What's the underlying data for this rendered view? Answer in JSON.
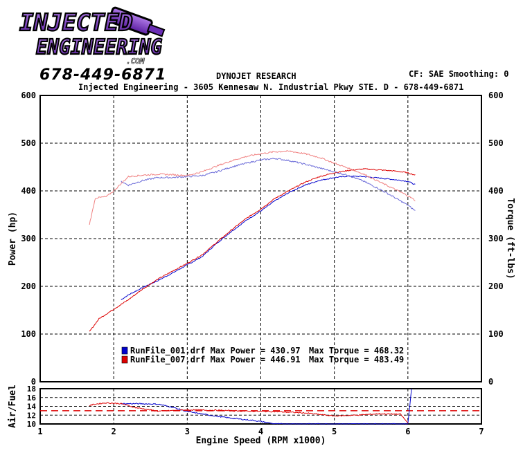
{
  "header": {
    "logo_text_line1": "INJECTED",
    "logo_text_line2": "ENGINEERING",
    "logo_text_line3": ".COM",
    "phone": "678-449-6871",
    "research": "DYNOJET RESEARCH",
    "cf_smoothing": "CF: SAE  Smoothing: 0",
    "address": "Injected Engineering - 3605 Kennesaw N. Industrial Pkwy STE. D - 678-449-6871"
  },
  "colors": {
    "run1": "#0000cc",
    "run2": "#dd0000",
    "run1_torque": "#6a6ad8",
    "run2_torque": "#f08080",
    "logo_purple": "#7a2fc4"
  },
  "chart_data": [
    {
      "type": "line",
      "title": "",
      "xlabel": "",
      "ylabel": "Power (hp)",
      "ylabel_right": "Torque (ft-lbs)",
      "xlim": [
        1,
        7
      ],
      "ylim": [
        0,
        600
      ],
      "xticks": [
        1,
        2,
        3,
        4,
        5,
        6,
        7
      ],
      "yticks": [
        0,
        100,
        200,
        300,
        400,
        500,
        600
      ],
      "grid": true,
      "legend": [
        {
          "label": "RunFile_001.drf Max Power = 430.97",
          "torque_label": "Max Torque = 468.32",
          "color": "#0000cc"
        },
        {
          "label": "RunFile_007.drf Max Power = 446.91",
          "torque_label": "Max Torque = 483.49",
          "color": "#dd0000"
        }
      ],
      "series": [
        {
          "name": "RunFile_001.drf",
          "kind": "power",
          "color": "#0000cc",
          "x": [
            2.1,
            2.2,
            2.4,
            2.6,
            2.8,
            3.0,
            3.2,
            3.4,
            3.6,
            3.8,
            4.0,
            4.2,
            4.4,
            4.6,
            4.8,
            5.0,
            5.2,
            5.4,
            5.6,
            5.8,
            6.0,
            6.1
          ],
          "y": [
            172,
            182,
            198,
            212,
            228,
            245,
            262,
            290,
            315,
            338,
            358,
            380,
            398,
            412,
            422,
            428,
            431,
            430,
            427,
            424,
            420,
            413
          ]
        },
        {
          "name": "RunFile_007.drf",
          "kind": "power",
          "color": "#dd0000",
          "x": [
            1.67,
            1.8,
            2.0,
            2.2,
            2.4,
            2.6,
            2.8,
            3.0,
            3.2,
            3.4,
            3.6,
            3.8,
            4.0,
            4.2,
            4.4,
            4.6,
            4.8,
            5.0,
            5.2,
            5.4,
            5.6,
            5.8,
            6.0,
            6.1
          ],
          "y": [
            105,
            132,
            152,
            172,
            195,
            215,
            232,
            248,
            266,
            292,
            318,
            342,
            362,
            385,
            402,
            418,
            430,
            438,
            443,
            446,
            444,
            442,
            438,
            433
          ]
        },
        {
          "name": "RunFile_001.drf",
          "kind": "torque",
          "color": "#6a6ad8",
          "x": [
            2.1,
            2.2,
            2.4,
            2.6,
            2.8,
            3.0,
            3.2,
            3.4,
            3.6,
            3.8,
            4.0,
            4.2,
            4.4,
            4.6,
            4.8,
            5.0,
            5.2,
            5.4,
            5.6,
            5.8,
            6.0,
            6.1
          ],
          "y": [
            420,
            412,
            422,
            428,
            428,
            430,
            432,
            440,
            450,
            458,
            465,
            468,
            463,
            456,
            448,
            440,
            432,
            420,
            405,
            388,
            370,
            358
          ]
        },
        {
          "name": "RunFile_007.drf",
          "kind": "torque",
          "color": "#f08080",
          "x": [
            1.67,
            1.75,
            1.9,
            2.0,
            2.2,
            2.4,
            2.6,
            2.8,
            3.0,
            3.2,
            3.4,
            3.6,
            3.8,
            4.0,
            4.2,
            4.4,
            4.6,
            4.8,
            5.0,
            5.2,
            5.4,
            5.6,
            5.8,
            6.0,
            6.1
          ],
          "y": [
            330,
            385,
            388,
            400,
            430,
            433,
            435,
            434,
            432,
            440,
            452,
            463,
            472,
            478,
            482,
            483,
            478,
            470,
            458,
            447,
            435,
            420,
            405,
            390,
            380
          ]
        }
      ]
    },
    {
      "type": "line",
      "title": "",
      "xlabel": "Engine Speed (RPM x1000)",
      "ylabel": "Air/Fuel",
      "xlim": [
        1,
        7
      ],
      "ylim": [
        10,
        18
      ],
      "yticks": [
        10,
        12,
        14,
        16,
        18
      ],
      "xticks": [
        1,
        2,
        3,
        4,
        5,
        6,
        7
      ],
      "reference_line": 13,
      "series": [
        {
          "name": "RunFile_001.drf",
          "color": "#0000cc",
          "x": [
            2.1,
            2.3,
            2.6,
            2.8,
            3.0,
            3.3,
            3.6,
            3.9,
            4.1,
            4.2,
            4.8,
            5.5,
            6.0,
            6.05
          ],
          "y": [
            14.6,
            14.6,
            14.5,
            13.8,
            12.8,
            12.0,
            11.3,
            10.8,
            10.3,
            10.0,
            10.0,
            10.0,
            10.0,
            18.0
          ]
        },
        {
          "name": "RunFile_007.drf",
          "color": "#dd0000",
          "x": [
            1.67,
            1.75,
            1.9,
            2.1,
            2.3,
            2.6,
            3.0,
            3.4,
            3.8,
            4.2,
            4.6,
            5.0,
            5.3,
            5.6,
            5.9,
            6.0
          ],
          "y": [
            14.2,
            14.5,
            14.8,
            14.6,
            13.7,
            12.9,
            13.2,
            13.1,
            12.9,
            12.8,
            12.5,
            11.8,
            12.0,
            12.3,
            12.2,
            10.2
          ]
        }
      ]
    }
  ]
}
